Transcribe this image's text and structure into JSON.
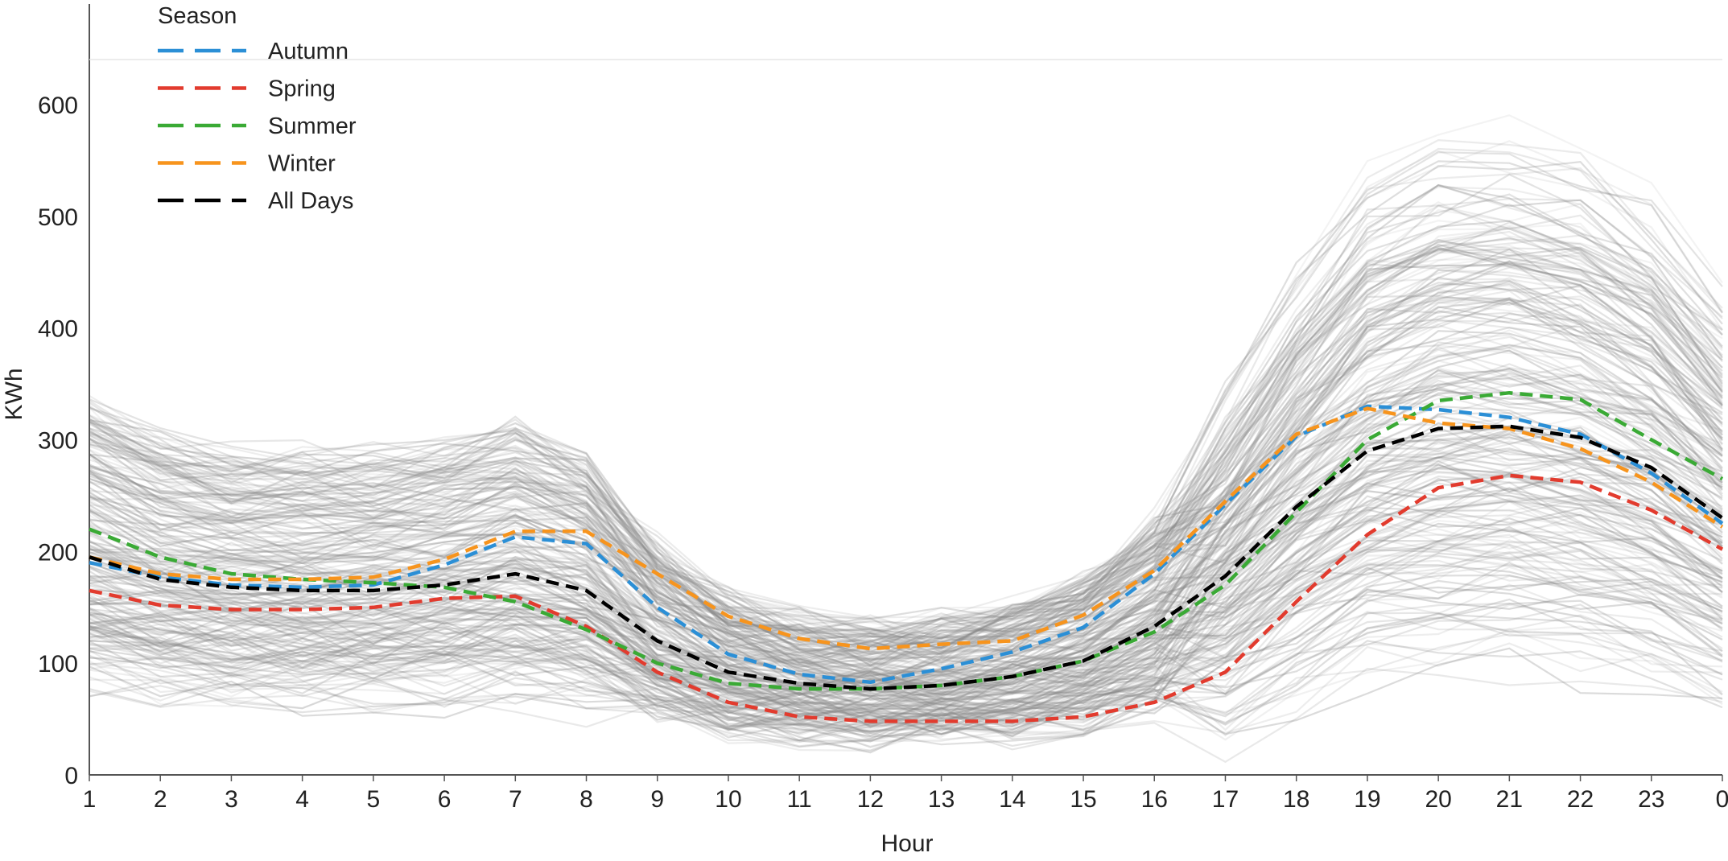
{
  "chart_data": {
    "type": "line",
    "title": "",
    "xlabel": "Hour",
    "ylabel": "KWh",
    "x": [
      "1",
      "2",
      "3",
      "4",
      "5",
      "6",
      "7",
      "8",
      "9",
      "10",
      "11",
      "12",
      "13",
      "14",
      "15",
      "16",
      "17",
      "18",
      "19",
      "20",
      "21",
      "22",
      "23",
      "0"
    ],
    "ylim": [
      0,
      640
    ],
    "yticks": [
      0,
      100,
      200,
      300,
      400,
      500,
      600
    ],
    "grid": false,
    "legend": {
      "title": "Season",
      "placement": "top-left"
    },
    "series": [
      {
        "name": "Autumn",
        "color": "#2b8fd6",
        "dashed": true,
        "values": [
          190,
          177,
          170,
          168,
          170,
          188,
          213,
          207,
          150,
          108,
          90,
          83,
          95,
          110,
          132,
          180,
          242,
          303,
          330,
          327,
          320,
          305,
          270,
          225
        ]
      },
      {
        "name": "Spring",
        "color": "#e23b2e",
        "dashed": true,
        "values": [
          165,
          152,
          148,
          148,
          150,
          158,
          160,
          133,
          92,
          65,
          52,
          48,
          48,
          48,
          52,
          65,
          92,
          155,
          215,
          257,
          268,
          262,
          237,
          202
        ]
      },
      {
        "name": "Summer",
        "color": "#3aaa35",
        "dashed": true,
        "values": [
          220,
          195,
          180,
          175,
          172,
          168,
          155,
          130,
          100,
          82,
          77,
          77,
          80,
          88,
          102,
          128,
          170,
          235,
          300,
          335,
          342,
          336,
          300,
          265
        ]
      },
      {
        "name": "Winter",
        "color": "#f7941d",
        "dashed": true,
        "values": [
          195,
          180,
          175,
          175,
          177,
          193,
          218,
          218,
          180,
          142,
          122,
          113,
          117,
          120,
          143,
          183,
          245,
          305,
          328,
          315,
          310,
          292,
          262,
          222
        ]
      },
      {
        "name": "All Days",
        "color": "#000000",
        "dashed": true,
        "values": [
          195,
          175,
          168,
          165,
          165,
          170,
          180,
          165,
          120,
          92,
          82,
          77,
          80,
          88,
          102,
          133,
          178,
          240,
          290,
          310,
          312,
          302,
          275,
          230
        ]
      }
    ],
    "background_lines": {
      "color": "#888888",
      "count": 240,
      "description_values": "daily load curves across all days"
    }
  }
}
